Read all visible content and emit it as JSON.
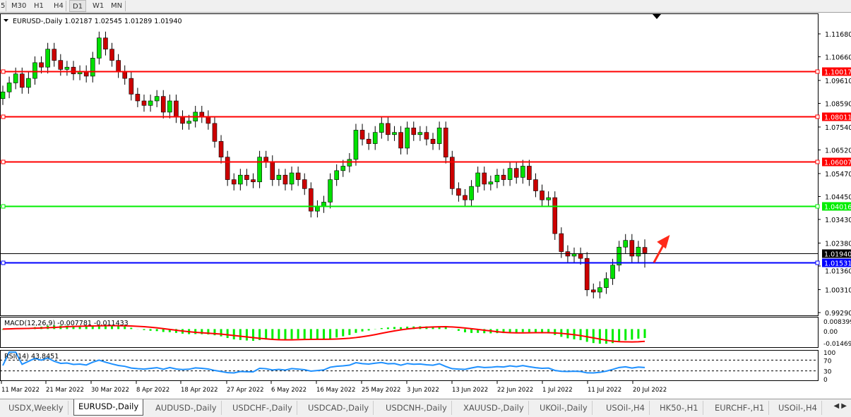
{
  "toolbar": {
    "timeframes": [
      {
        "label": "5"
      },
      {
        "label": "M30"
      },
      {
        "label": "H1"
      },
      {
        "label": "H4"
      },
      {
        "label": "D1",
        "active": true
      },
      {
        "label": "W1"
      },
      {
        "label": "MN"
      }
    ]
  },
  "chart": {
    "symbol_header": "EURUSD-,Daily  1.02187 1.02545 1.01289 1.01940",
    "price_axis": {
      "ticks": [
        "1.11680",
        "1.10660",
        "1.09610",
        "1.08590",
        "1.07540",
        "1.06520",
        "1.05470",
        "1.04450",
        "1.03430",
        "1.02380",
        "1.01360",
        "1.00310",
        "0.99290"
      ],
      "range": [
        0.9929,
        1.1168
      ]
    },
    "hlines": [
      {
        "price": 1.10017,
        "label": "1.10017",
        "color": "#ff0000"
      },
      {
        "price": 1.08011,
        "label": "1.08011",
        "color": "#ff0000"
      },
      {
        "price": 1.06007,
        "label": "1.06007",
        "color": "#ff0000"
      },
      {
        "price": 1.04016,
        "label": "1.04016",
        "color": "#00ee00"
      },
      {
        "price": 1.01531,
        "label": "1.01531",
        "color": "#0000ff"
      }
    ],
    "current_price": {
      "price": 1.0194,
      "label": "1.01940",
      "color": "#000000"
    },
    "bull_color": "#00e000",
    "bear_color": "#cc0000",
    "arrow_color": "#ff2a1a",
    "close": [
      1.091,
      1.095,
      1.099,
      1.093,
      1.097,
      1.104,
      1.102,
      1.11,
      1.105,
      1.101,
      1.102,
      1.099,
      1.1,
      1.098,
      1.106,
      1.115,
      1.11,
      1.105,
      1.1,
      1.097,
      1.09,
      1.087,
      1.085,
      1.087,
      1.089,
      1.082,
      1.087,
      1.08,
      1.077,
      1.078,
      1.082,
      1.08,
      1.077,
      1.069,
      1.062,
      1.052,
      1.05,
      1.054,
      1.052,
      1.051,
      1.062,
      1.06,
      1.052,
      1.054,
      1.05,
      1.055,
      1.052,
      1.048,
      1.038,
      1.04,
      1.042,
      1.052,
      1.056,
      1.058,
      1.061,
      1.074,
      1.07,
      1.068,
      1.073,
      1.077,
      1.072,
      1.073,
      1.066,
      1.075,
      1.072,
      1.073,
      1.07,
      1.068,
      1.075,
      1.062,
      1.048,
      1.045,
      1.043,
      1.049,
      1.055,
      1.05,
      1.051,
      1.054,
      1.052,
      1.057,
      1.053,
      1.058,
      1.052,
      1.047,
      1.043,
      1.044,
      1.028,
      1.02,
      1.018,
      1.019,
      1.017,
      1.003,
      1.002,
      1.004,
      1.008,
      1.014,
      1.022,
      1.025,
      1.018,
      1.022,
      1.0194
    ],
    "last_candle": {
      "open": 1.02187,
      "high": 1.02545,
      "low": 1.01289,
      "close": 1.0194
    },
    "macd": {
      "label": "MACD(12,26,9) -0.007781 -0.011433",
      "axis": [
        "0.008399",
        "0.00",
        "-0.014693"
      ],
      "hist_color": "#00ee00",
      "signal_color": "#ff0000"
    },
    "rsi": {
      "label": "RSI(14) 43.8451",
      "axis": [
        "100",
        "70",
        "30",
        "0"
      ],
      "levels": [
        70,
        30
      ],
      "line_color": "#1e90ff"
    },
    "dates": [
      "11 Mar 2022",
      "21 Mar 2022",
      "30 Mar 2022",
      "8 Apr 2022",
      "18 Apr 2022",
      "27 Apr 2022",
      "6 May 2022",
      "16 May 2022",
      "25 May 2022",
      "3 Jun 2022",
      "13 Jun 2022",
      "22 Jun 2022",
      "1 Jul 2022",
      "11 Jul 2022",
      "20 Jul 2022"
    ]
  },
  "tabs": [
    {
      "label": "USDX,Weekly"
    },
    {
      "label": "EURUSD-,Daily",
      "active": true
    },
    {
      "label": "AUDUSD-,Daily"
    },
    {
      "label": "USDCHF-,Daily"
    },
    {
      "label": "USDCAD-,Daily"
    },
    {
      "label": "USDCNH-,Daily"
    },
    {
      "label": "XAUUSD-,Daily"
    },
    {
      "label": "UKOil-,Daily"
    },
    {
      "label": "USOil-,H4"
    },
    {
      "label": "HK50-,H1"
    },
    {
      "label": "EURCHF-,H1"
    },
    {
      "label": "USOil-,H4"
    }
  ]
}
